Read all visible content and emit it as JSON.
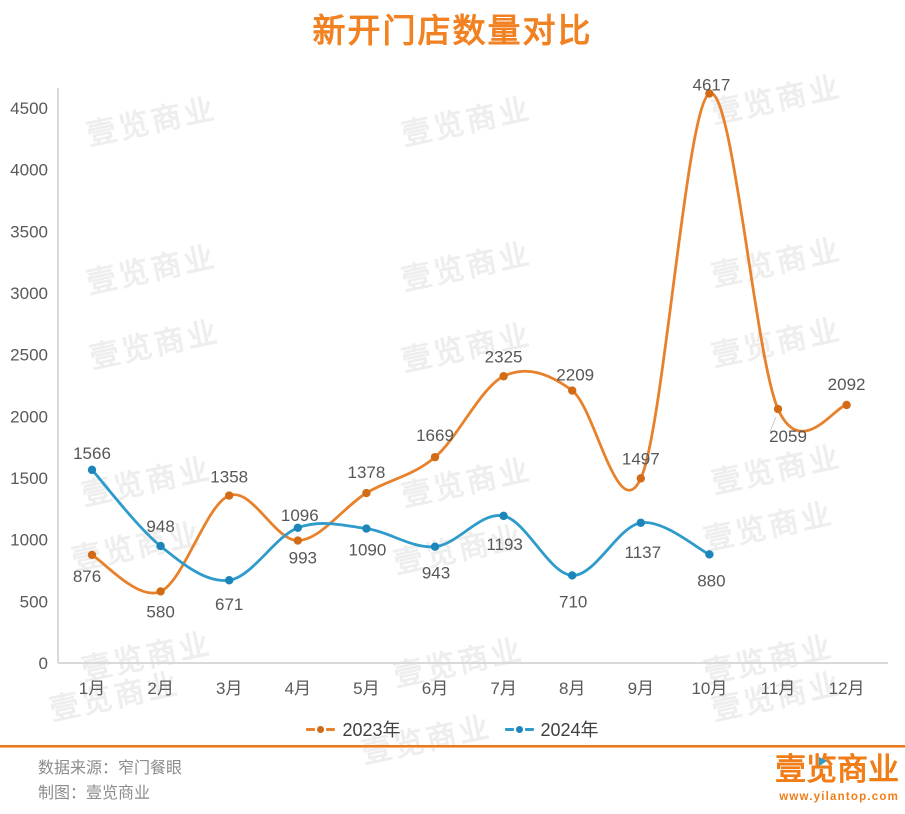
{
  "title": "新开门店数量对比",
  "chart_data": {
    "type": "line",
    "title": "新开门店数量对比",
    "categories": [
      "1月",
      "2月",
      "3月",
      "4月",
      "5月",
      "6月",
      "7月",
      "8月",
      "9月",
      "10月",
      "11月",
      "12月"
    ],
    "series": [
      {
        "name": "2023年",
        "color": "#E8812C",
        "marker_color": "#D26B15",
        "values": [
          876,
          580,
          1358,
          993,
          1378,
          1669,
          2325,
          2209,
          1497,
          4617,
          2059,
          2092
        ]
      },
      {
        "name": "2024年",
        "color": "#2E9BCB",
        "marker_color": "#1C86BB",
        "values": [
          1566,
          948,
          671,
          1096,
          1090,
          943,
          1193,
          710,
          1137,
          880
        ]
      }
    ],
    "xlabel": "",
    "ylabel": "",
    "ylim": [
      0,
      4500
    ],
    "yticks": [
      0,
      500,
      1000,
      1500,
      2000,
      2500,
      3000,
      3500,
      4000,
      4500
    ],
    "grid": false,
    "legend_position": "bottom",
    "data_labels": true
  },
  "watermark": {
    "text": "壹览商业"
  },
  "footer": {
    "source_line": "数据来源：窄门餐眼",
    "credit_line": "制图：壹览商业"
  },
  "logo": {
    "text": "壹览商业",
    "url": "www.yilantop.com"
  },
  "colors": {
    "title": "#F18121",
    "axis": "#D9D9D9",
    "tick_text": "#595959",
    "data_label": "#575757",
    "legend_text": "#3F3F3F",
    "footer_text": "#8C8C8C",
    "divider": "#E87A1E",
    "logo": "#F07D17",
    "logo_triangle": "#2E9BCB"
  }
}
